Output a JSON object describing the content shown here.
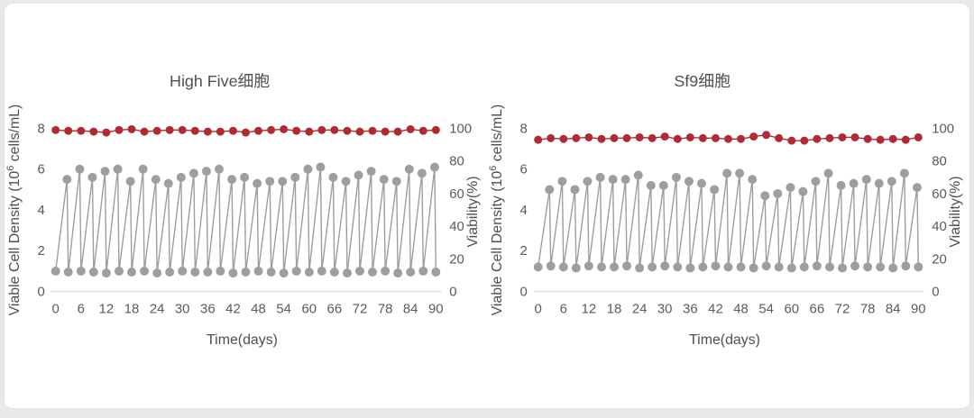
{
  "page": {
    "background_color": "#e9e9ea",
    "card_color": "#ffffff"
  },
  "chart_data": [
    {
      "type": "line",
      "title": "High Five细胞",
      "xlabel": "Time(days)",
      "ylabel_left": {
        "prefix": "Viable Cell Density (10",
        "sup": "6",
        "suffix": " cells/mL)"
      },
      "ylabel_right": "Viability(%)",
      "x_ticks": [
        0,
        6,
        12,
        18,
        24,
        30,
        36,
        42,
        48,
        54,
        60,
        66,
        72,
        78,
        84,
        90
      ],
      "yleft_ticks": [
        0,
        2,
        4,
        6,
        8
      ],
      "yright_ticks": [
        0,
        20,
        40,
        60,
        80,
        100
      ],
      "xlim": [
        0,
        90
      ],
      "yleft_lim": [
        0,
        8
      ],
      "yright_lim": [
        0,
        100
      ],
      "grid": false,
      "legend": "none",
      "series": [
        {
          "name": "Viable Cell Density",
          "axis": "left",
          "color": "#9e9e9e",
          "marker_radius": 5,
          "points": [
            [
              0,
              1.0
            ],
            [
              2.7,
              5.5
            ],
            [
              3,
              0.95
            ],
            [
              5.7,
              6.0
            ],
            [
              6,
              1.0
            ],
            [
              8.7,
              5.6
            ],
            [
              9,
              0.95
            ],
            [
              11.7,
              5.9
            ],
            [
              12,
              0.9
            ],
            [
              14.7,
              6.0
            ],
            [
              15,
              1.0
            ],
            [
              17.7,
              5.4
            ],
            [
              18,
              0.95
            ],
            [
              20.7,
              6.0
            ],
            [
              21,
              1.0
            ],
            [
              23.7,
              5.5
            ],
            [
              24,
              0.9
            ],
            [
              26.7,
              5.3
            ],
            [
              27,
              0.95
            ],
            [
              29.7,
              5.6
            ],
            [
              30,
              1.0
            ],
            [
              32.7,
              5.8
            ],
            [
              33,
              0.95
            ],
            [
              35.7,
              5.9
            ],
            [
              36,
              0.95
            ],
            [
              38.7,
              6.0
            ],
            [
              39,
              1.0
            ],
            [
              41.7,
              5.5
            ],
            [
              42,
              0.9
            ],
            [
              44.7,
              5.6
            ],
            [
              45,
              0.95
            ],
            [
              47.7,
              5.3
            ],
            [
              48,
              1.0
            ],
            [
              50.7,
              5.4
            ],
            [
              51,
              0.95
            ],
            [
              53.7,
              5.4
            ],
            [
              54,
              0.9
            ],
            [
              56.7,
              5.6
            ],
            [
              57,
              1.0
            ],
            [
              59.7,
              6.0
            ],
            [
              60,
              0.95
            ],
            [
              62.7,
              6.1
            ],
            [
              63,
              1.0
            ],
            [
              65.7,
              5.6
            ],
            [
              66,
              0.95
            ],
            [
              68.7,
              5.4
            ],
            [
              69,
              0.9
            ],
            [
              71.7,
              5.7
            ],
            [
              72,
              1.0
            ],
            [
              74.7,
              5.9
            ],
            [
              75,
              0.95
            ],
            [
              77.7,
              5.5
            ],
            [
              78,
              1.0
            ],
            [
              80.7,
              5.4
            ],
            [
              81,
              0.9
            ],
            [
              83.7,
              6.0
            ],
            [
              84,
              0.95
            ],
            [
              86.7,
              5.8
            ],
            [
              87,
              1.0
            ],
            [
              89.7,
              6.1
            ],
            [
              90,
              0.95
            ]
          ]
        },
        {
          "name": "Viability",
          "axis": "right",
          "color": "#b12a31",
          "marker_radius": 4.5,
          "points": [
            [
              0,
              99
            ],
            [
              3,
              98.5
            ],
            [
              6,
              98.5
            ],
            [
              9,
              98
            ],
            [
              12,
              97.5
            ],
            [
              15,
              99
            ],
            [
              18,
              99.5
            ],
            [
              21,
              98
            ],
            [
              24,
              98.5
            ],
            [
              27,
              99
            ],
            [
              30,
              99
            ],
            [
              33,
              98.5
            ],
            [
              36,
              98
            ],
            [
              39,
              98
            ],
            [
              42,
              98.5
            ],
            [
              45,
              97.5
            ],
            [
              48,
              98.5
            ],
            [
              51,
              99
            ],
            [
              54,
              99.5
            ],
            [
              57,
              98.5
            ],
            [
              60,
              98
            ],
            [
              63,
              99
            ],
            [
              66,
              99
            ],
            [
              69,
              98.5
            ],
            [
              72,
              98
            ],
            [
              75,
              98.5
            ],
            [
              78,
              98
            ],
            [
              81,
              98
            ],
            [
              84,
              99.5
            ],
            [
              87,
              98.5
            ],
            [
              90,
              99
            ]
          ]
        }
      ]
    },
    {
      "type": "line",
      "title": "Sf9细胞",
      "xlabel": "Time(days)",
      "ylabel_left": {
        "prefix": "Viable Cell Density (10",
        "sup": "6",
        "suffix": " cells/mL)"
      },
      "ylabel_right": "Viability(%)",
      "x_ticks": [
        0,
        6,
        12,
        18,
        24,
        30,
        36,
        42,
        48,
        54,
        60,
        66,
        72,
        78,
        84,
        90
      ],
      "yleft_ticks": [
        0,
        2,
        4,
        6,
        8
      ],
      "yright_ticks": [
        0,
        20,
        40,
        60,
        80,
        100
      ],
      "xlim": [
        0,
        90
      ],
      "yleft_lim": [
        0,
        8
      ],
      "yright_lim": [
        0,
        100
      ],
      "grid": false,
      "legend": "none",
      "series": [
        {
          "name": "Viable Cell Density",
          "axis": "left",
          "color": "#9e9e9e",
          "marker_radius": 5,
          "points": [
            [
              0,
              1.2
            ],
            [
              2.7,
              5.0
            ],
            [
              3,
              1.25
            ],
            [
              5.7,
              5.4
            ],
            [
              6,
              1.2
            ],
            [
              8.7,
              5.0
            ],
            [
              9,
              1.15
            ],
            [
              11.7,
              5.4
            ],
            [
              12,
              1.25
            ],
            [
              14.7,
              5.6
            ],
            [
              15,
              1.2
            ],
            [
              17.7,
              5.5
            ],
            [
              18,
              1.2
            ],
            [
              20.7,
              5.5
            ],
            [
              21,
              1.25
            ],
            [
              23.7,
              5.7
            ],
            [
              24,
              1.15
            ],
            [
              26.7,
              5.2
            ],
            [
              27,
              1.2
            ],
            [
              29.7,
              5.2
            ],
            [
              30,
              1.25
            ],
            [
              32.7,
              5.6
            ],
            [
              33,
              1.2
            ],
            [
              35.7,
              5.4
            ],
            [
              36,
              1.15
            ],
            [
              38.7,
              5.3
            ],
            [
              39,
              1.2
            ],
            [
              41.7,
              5.0
            ],
            [
              42,
              1.25
            ],
            [
              44.7,
              5.8
            ],
            [
              45,
              1.2
            ],
            [
              47.7,
              5.8
            ],
            [
              48,
              1.2
            ],
            [
              50.7,
              5.5
            ],
            [
              51,
              1.15
            ],
            [
              53.7,
              4.7
            ],
            [
              54,
              1.25
            ],
            [
              56.7,
              4.8
            ],
            [
              57,
              1.2
            ],
            [
              59.7,
              5.1
            ],
            [
              60,
              1.15
            ],
            [
              62.7,
              4.9
            ],
            [
              63,
              1.2
            ],
            [
              65.7,
              5.4
            ],
            [
              66,
              1.25
            ],
            [
              68.7,
              5.8
            ],
            [
              69,
              1.2
            ],
            [
              71.7,
              5.2
            ],
            [
              72,
              1.15
            ],
            [
              74.7,
              5.3
            ],
            [
              75,
              1.25
            ],
            [
              77.7,
              5.5
            ],
            [
              78,
              1.2
            ],
            [
              80.7,
              5.3
            ],
            [
              81,
              1.2
            ],
            [
              83.7,
              5.4
            ],
            [
              84,
              1.15
            ],
            [
              86.7,
              5.8
            ],
            [
              87,
              1.25
            ],
            [
              89.7,
              5.1
            ],
            [
              90,
              1.2
            ]
          ]
        },
        {
          "name": "Viability",
          "axis": "right",
          "color": "#b12a31",
          "marker_radius": 4.5,
          "points": [
            [
              0,
              93
            ],
            [
              3,
              94
            ],
            [
              6,
              93.5
            ],
            [
              9,
              94
            ],
            [
              12,
              94.5
            ],
            [
              15,
              93.5
            ],
            [
              18,
              94
            ],
            [
              21,
              94
            ],
            [
              24,
              94.5
            ],
            [
              27,
              94
            ],
            [
              30,
              95
            ],
            [
              33,
              93.5
            ],
            [
              36,
              94.5
            ],
            [
              39,
              94
            ],
            [
              42,
              94
            ],
            [
              45,
              93.5
            ],
            [
              48,
              93.5
            ],
            [
              51,
              95
            ],
            [
              54,
              96
            ],
            [
              57,
              94
            ],
            [
              60,
              92.5
            ],
            [
              63,
              92.5
            ],
            [
              66,
              93.5
            ],
            [
              69,
              94
            ],
            [
              72,
              94.5
            ],
            [
              75,
              94.5
            ],
            [
              78,
              93.5
            ],
            [
              81,
              93
            ],
            [
              84,
              93.5
            ],
            [
              87,
              93
            ],
            [
              90,
              94.5
            ]
          ]
        }
      ]
    }
  ]
}
